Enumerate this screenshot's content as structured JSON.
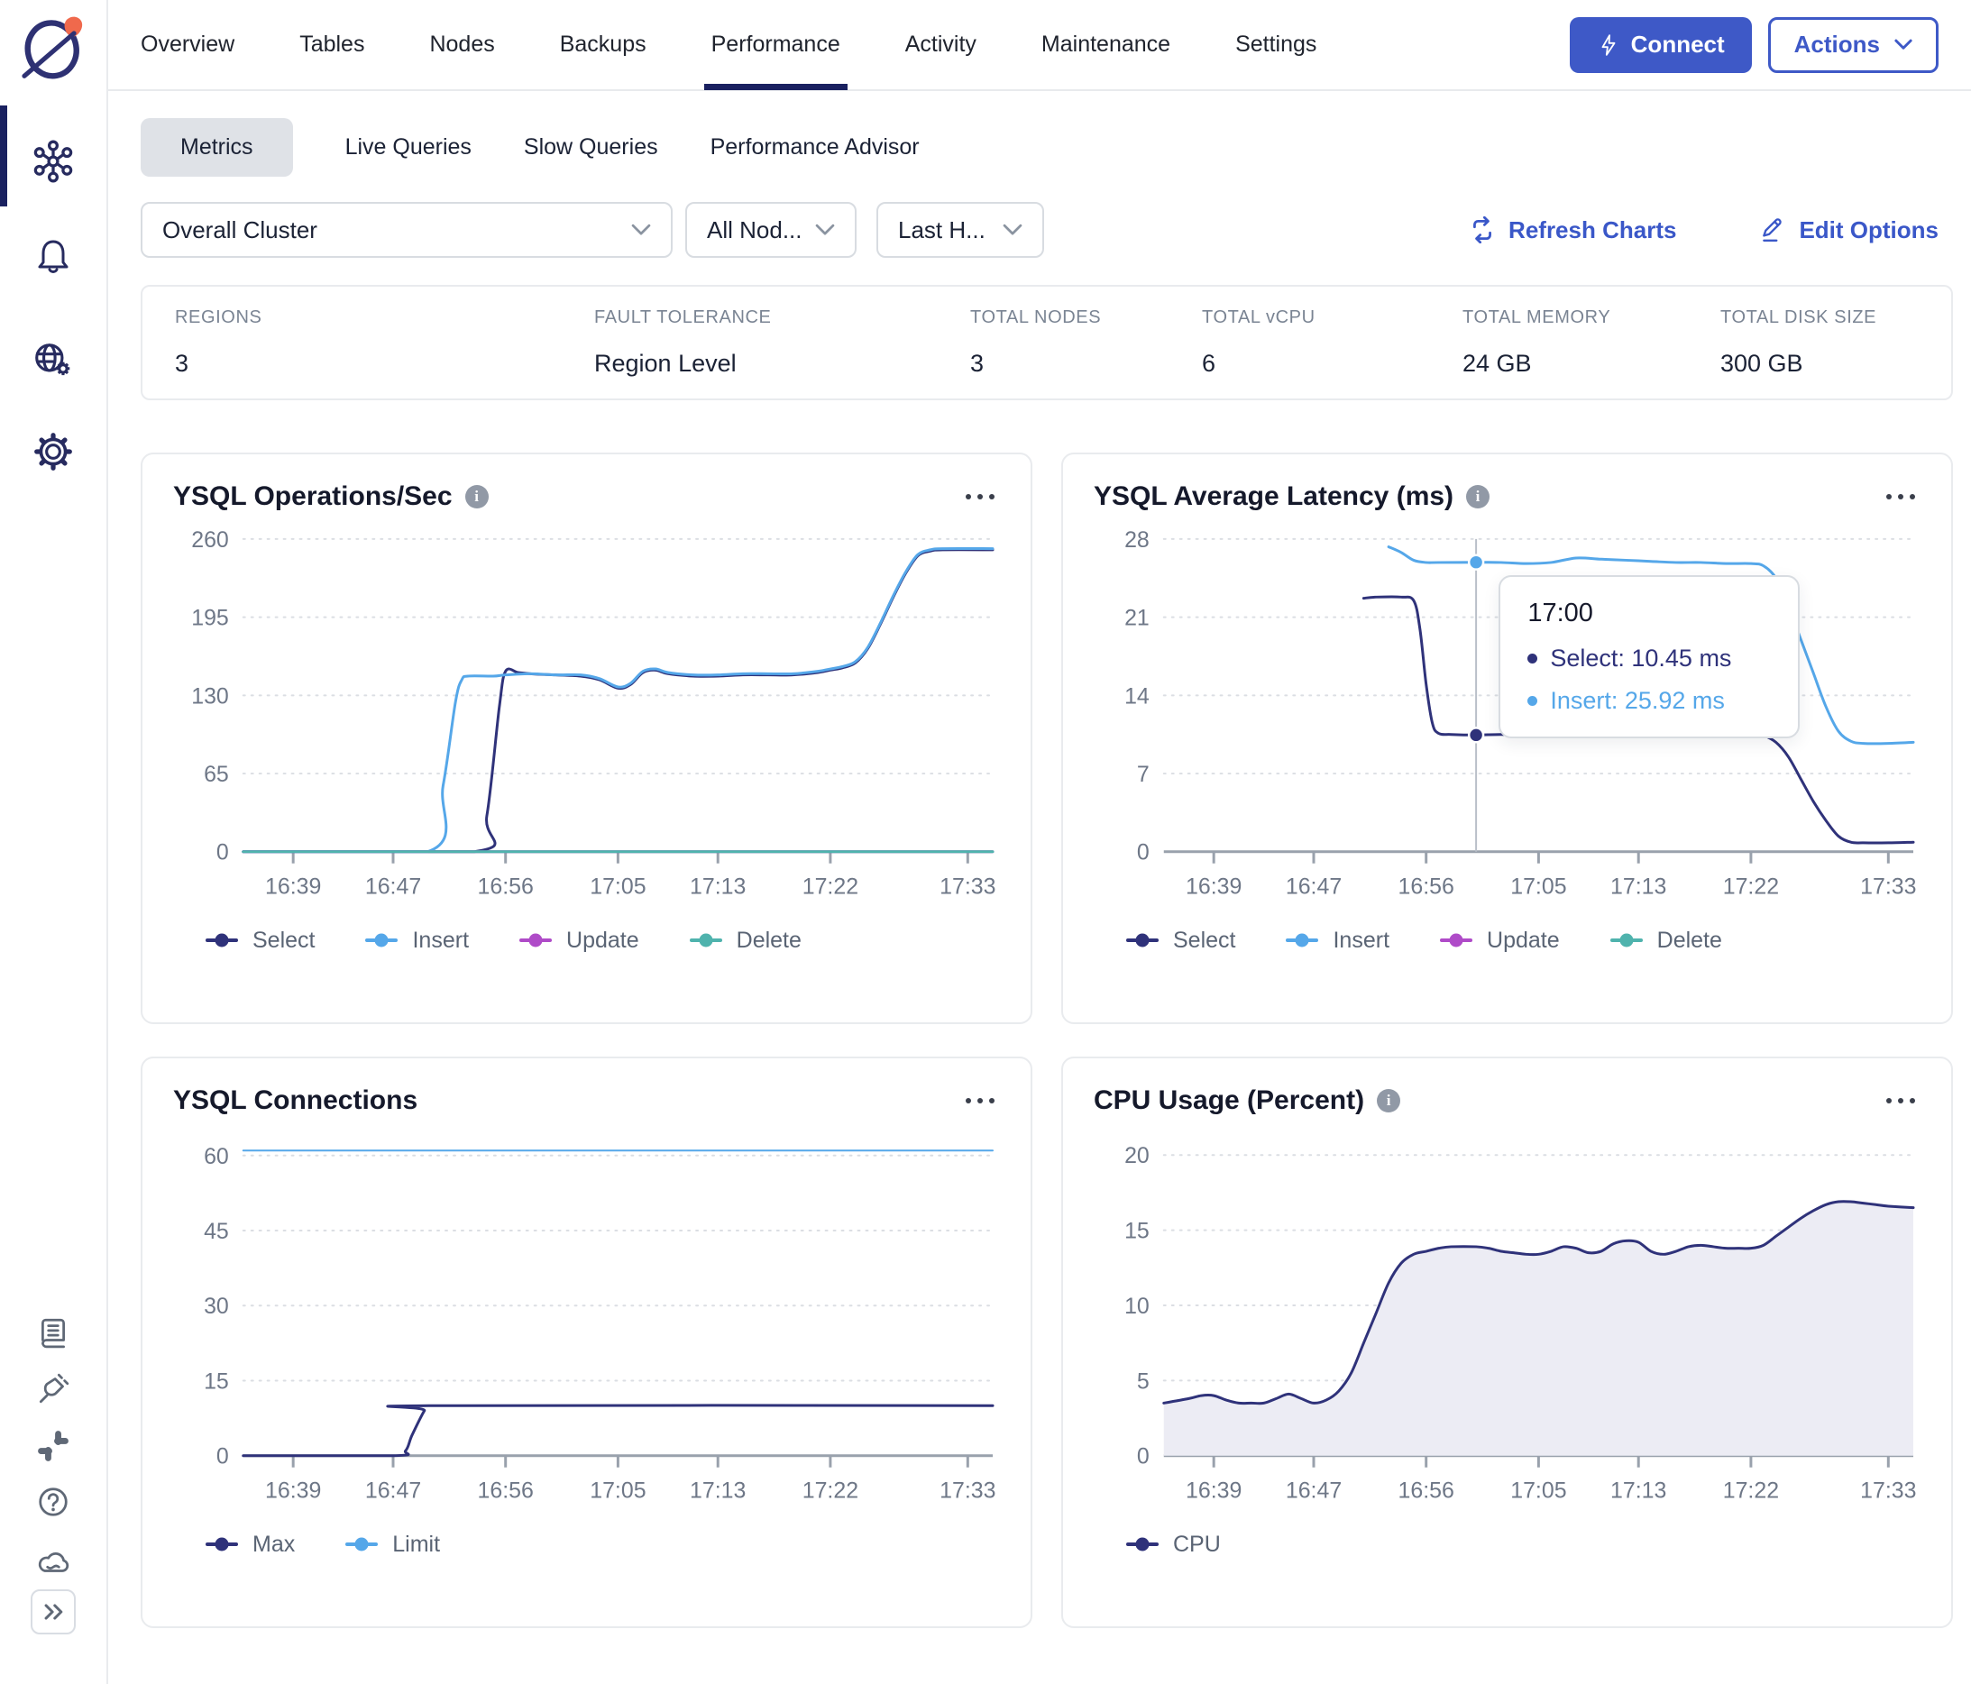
{
  "header": {
    "tabs": [
      "Overview",
      "Tables",
      "Nodes",
      "Backups",
      "Performance",
      "Activity",
      "Maintenance",
      "Settings"
    ],
    "active_tab": "Performance",
    "connect_label": "Connect",
    "actions_label": "Actions"
  },
  "subtabs": {
    "items": [
      "Metrics",
      "Live Queries",
      "Slow Queries",
      "Performance Advisor"
    ],
    "active": "Metrics"
  },
  "filters": {
    "cluster": "Overall Cluster",
    "nodes": "All Nod...",
    "time_range": "Last H..."
  },
  "toolbar": {
    "refresh_label": "Refresh Charts",
    "edit_label": "Edit Options"
  },
  "stats": [
    {
      "label": "REGIONS",
      "value": "3"
    },
    {
      "label": "FAULT TOLERANCE",
      "value": "Region Level"
    },
    {
      "label": "TOTAL NODES",
      "value": "3"
    },
    {
      "label": "TOTAL vCPU",
      "value": "6"
    },
    {
      "label": "TOTAL MEMORY",
      "value": "24 GB"
    },
    {
      "label": "TOTAL DISK SIZE",
      "value": "300 GB"
    }
  ],
  "colors": {
    "accent_blue": "#3E59C7",
    "select": "#2F327A",
    "insert": "#55A7E9",
    "update": "#AF4BC8",
    "delete": "#4FB3AD",
    "active_navy": "#1A2160",
    "cpu_fill": "#ECECF4"
  },
  "chart_data": [
    {
      "type": "line",
      "title": "YSQL Operations/Sec",
      "ylim": [
        0,
        260
      ],
      "yticks": [
        0,
        65,
        130,
        195,
        260
      ],
      "x_range": [
        "16:35",
        "17:35"
      ],
      "xticks": [
        "16:39",
        "16:47",
        "16:56",
        "17:05",
        "17:13",
        "17:22",
        "17:33"
      ],
      "series": [
        {
          "name": "Select",
          "color": "#2F327A",
          "points": [
            [
              "16:35",
              0
            ],
            [
              "16:53:30",
              0
            ],
            [
              "16:54:30",
              30
            ],
            [
              "16:55:30",
              120
            ],
            [
              "16:56",
              150
            ],
            [
              "16:57",
              149
            ],
            [
              "16:58",
              148
            ],
            [
              "17:00",
              147
            ],
            [
              "17:02",
              146
            ],
            [
              "17:03:30",
              143
            ],
            [
              "17:05",
              136
            ],
            [
              "17:06",
              139
            ],
            [
              "17:07",
              149
            ],
            [
              "17:08",
              151
            ],
            [
              "17:09",
              148
            ],
            [
              "17:11",
              146
            ],
            [
              "17:13",
              146
            ],
            [
              "17:15",
              147
            ],
            [
              "17:17",
              147
            ],
            [
              "17:19",
              147
            ],
            [
              "17:21",
              149
            ],
            [
              "17:22",
              151
            ],
            [
              "17:23",
              153
            ],
            [
              "17:24",
              157
            ],
            [
              "17:25",
              169
            ],
            [
              "17:26",
              189
            ],
            [
              "17:27",
              211
            ],
            [
              "17:28",
              231
            ],
            [
              "17:29",
              246
            ],
            [
              "17:30",
              250
            ],
            [
              "17:31",
              251
            ],
            [
              "17:35",
              251
            ]
          ]
        },
        {
          "name": "Insert",
          "color": "#55A7E9",
          "points": [
            [
              "16:35",
              0
            ],
            [
              "16:49:45",
              0
            ],
            [
              "16:51",
              55
            ],
            [
              "16:52",
              125
            ],
            [
              "16:52:30",
              143
            ],
            [
              "16:53",
              146
            ],
            [
              "16:55",
              146
            ],
            [
              "16:56",
              147
            ],
            [
              "16:58",
              148
            ],
            [
              "17:00",
              147
            ],
            [
              "17:02",
              147
            ],
            [
              "17:03:30",
              144
            ],
            [
              "17:05",
              137
            ],
            [
              "17:06",
              140
            ],
            [
              "17:07",
              150
            ],
            [
              "17:08",
              152
            ],
            [
              "17:09",
              149
            ],
            [
              "17:11",
              147
            ],
            [
              "17:13",
              147
            ],
            [
              "17:15",
              148
            ],
            [
              "17:17",
              148
            ],
            [
              "17:19",
              148
            ],
            [
              "17:21",
              150
            ],
            [
              "17:22",
              152
            ],
            [
              "17:23",
              154
            ],
            [
              "17:24",
              158
            ],
            [
              "17:25",
              170
            ],
            [
              "17:26",
              190
            ],
            [
              "17:27",
              212
            ],
            [
              "17:28",
              232
            ],
            [
              "17:29",
              247
            ],
            [
              "17:30",
              251
            ],
            [
              "17:31",
              252
            ],
            [
              "17:35",
              252
            ]
          ]
        },
        {
          "name": "Update",
          "color": "#AF4BC8",
          "points": [
            [
              "16:35",
              0
            ],
            [
              "17:35",
              0
            ]
          ]
        },
        {
          "name": "Delete",
          "color": "#4FB3AD",
          "points": [
            [
              "16:35",
              0
            ],
            [
              "17:35",
              0
            ]
          ]
        }
      ]
    },
    {
      "type": "line",
      "title": "YSQL Average Latency (ms)",
      "ylim": [
        0,
        28
      ],
      "yticks": [
        0,
        7,
        14,
        21,
        28
      ],
      "x_range": [
        "16:35",
        "17:35"
      ],
      "xticks": [
        "16:39",
        "16:47",
        "16:56",
        "17:05",
        "17:13",
        "17:22",
        "17:33"
      ],
      "series": [
        {
          "name": "Select",
          "color": "#2F327A",
          "points": [
            [
              "16:51",
              22.7
            ],
            [
              "16:52",
              22.8
            ],
            [
              "16:54",
              22.8
            ],
            [
              "16:55",
              22.5
            ],
            [
              "16:55:30",
              20
            ],
            [
              "16:56",
              15
            ],
            [
              "16:56:30",
              11.5
            ],
            [
              "16:57",
              10.6
            ],
            [
              "16:58",
              10.5
            ],
            [
              "17:00",
              10.45
            ],
            [
              "17:02",
              10.5
            ],
            [
              "17:04",
              10.4
            ],
            [
              "17:06",
              10.5
            ],
            [
              "17:07",
              10.9
            ],
            [
              "17:08",
              10.8
            ],
            [
              "17:09",
              10.5
            ],
            [
              "17:11",
              10.5
            ],
            [
              "17:13",
              10.4
            ],
            [
              "17:15",
              10.5
            ],
            [
              "17:17",
              10.5
            ],
            [
              "17:19",
              10.5
            ],
            [
              "17:21",
              10.5
            ],
            [
              "17:22",
              10.5
            ],
            [
              "17:23",
              10.4
            ],
            [
              "17:24",
              9.8
            ],
            [
              "17:25",
              8.5
            ],
            [
              "17:26",
              6.5
            ],
            [
              "17:27",
              4.5
            ],
            [
              "17:28",
              2.8
            ],
            [
              "17:29",
              1.4
            ],
            [
              "17:30",
              0.85
            ],
            [
              "17:31",
              0.8
            ],
            [
              "17:33",
              0.8
            ],
            [
              "17:35",
              0.85
            ]
          ]
        },
        {
          "name": "Insert",
          "color": "#55A7E9",
          "points": [
            [
              "16:53",
              27.3
            ],
            [
              "16:54",
              26.8
            ],
            [
              "16:55",
              26.1
            ],
            [
              "16:56",
              25.9
            ],
            [
              "16:57",
              25.9
            ],
            [
              "17:00",
              25.92
            ],
            [
              "17:02",
              25.9
            ],
            [
              "17:04",
              25.8
            ],
            [
              "17:06",
              25.9
            ],
            [
              "17:08",
              26.3
            ],
            [
              "17:10",
              26.2
            ],
            [
              "17:12",
              26.1
            ],
            [
              "17:14",
              26.0
            ],
            [
              "17:16",
              25.9
            ],
            [
              "17:18",
              25.9
            ],
            [
              "17:20",
              25.8
            ],
            [
              "17:22",
              25.8
            ],
            [
              "17:23",
              25.6
            ],
            [
              "17:24",
              24.5
            ],
            [
              "17:25",
              22
            ],
            [
              "17:26",
              19
            ],
            [
              "17:27",
              16
            ],
            [
              "17:28",
              13
            ],
            [
              "17:29",
              10.8
            ],
            [
              "17:30",
              9.9
            ],
            [
              "17:31",
              9.7
            ],
            [
              "17:33",
              9.7
            ],
            [
              "17:35",
              9.8
            ]
          ]
        },
        {
          "name": "Update",
          "color": "#AF4BC8",
          "points": []
        },
        {
          "name": "Delete",
          "color": "#4FB3AD",
          "points": []
        }
      ],
      "crosshair": {
        "time": "17:00",
        "markers": [
          {
            "series": "Select",
            "value": 10.45
          },
          {
            "series": "Insert",
            "value": 25.92
          }
        ]
      },
      "tooltip": {
        "time": "17:00",
        "rows": [
          {
            "series": "Select",
            "text": "Select: 10.45 ms"
          },
          {
            "series": "Insert",
            "text": "Insert: 25.92 ms"
          }
        ]
      }
    },
    {
      "type": "line",
      "title": "YSQL Connections",
      "ylim": [
        0,
        62.5
      ],
      "yticks": [
        0,
        15,
        30,
        45,
        60
      ],
      "x_range": [
        "16:35",
        "17:35"
      ],
      "xticks": [
        "16:39",
        "16:47",
        "16:56",
        "17:05",
        "17:13",
        "17:22",
        "17:33"
      ],
      "series": [
        {
          "name": "Max",
          "color": "#2F327A",
          "points": [
            [
              "16:35",
              0
            ],
            [
              "16:47",
              0
            ],
            [
              "16:48",
              1
            ],
            [
              "16:48:30",
              4
            ],
            [
              "16:49:30",
              9
            ],
            [
              "16:50",
              10
            ],
            [
              "17:35",
              10
            ]
          ]
        },
        {
          "name": "Limit",
          "color": "#55A7E9",
          "width": 2,
          "points": [
            [
              "16:35",
              61
            ],
            [
              "17:35",
              61
            ]
          ]
        }
      ]
    },
    {
      "type": "area",
      "title": "CPU Usage (Percent)",
      "fill": "#ECECF4",
      "ylim": [
        0,
        20.8
      ],
      "yticks": [
        0,
        5,
        10,
        15,
        20
      ],
      "x_range": [
        "16:35",
        "17:35"
      ],
      "xticks": [
        "16:39",
        "16:47",
        "16:56",
        "17:05",
        "17:13",
        "17:22",
        "17:33"
      ],
      "series": [
        {
          "name": "CPU",
          "color": "#2F327A",
          "points": [
            [
              "16:35",
              3.5
            ],
            [
              "16:37",
              3.8
            ],
            [
              "16:38",
              4.0
            ],
            [
              "16:39",
              4.0
            ],
            [
              "16:40",
              3.7
            ],
            [
              "16:41",
              3.5
            ],
            [
              "16:42",
              3.5
            ],
            [
              "16:43",
              3.5
            ],
            [
              "16:44",
              3.8
            ],
            [
              "16:45",
              4.1
            ],
            [
              "16:46",
              3.8
            ],
            [
              "16:47",
              3.5
            ],
            [
              "16:48",
              3.7
            ],
            [
              "16:49",
              4.3
            ],
            [
              "16:50",
              5.5
            ],
            [
              "16:51",
              7.5
            ],
            [
              "16:52",
              9.5
            ],
            [
              "16:53",
              11.5
            ],
            [
              "16:54",
              12.8
            ],
            [
              "16:55",
              13.4
            ],
            [
              "16:56",
              13.6
            ],
            [
              "16:57",
              13.8
            ],
            [
              "16:58",
              13.9
            ],
            [
              "17:00",
              13.9
            ],
            [
              "17:01",
              13.8
            ],
            [
              "17:02",
              13.6
            ],
            [
              "17:03",
              13.5
            ],
            [
              "17:04",
              13.4
            ],
            [
              "17:05",
              13.4
            ],
            [
              "17:06",
              13.6
            ],
            [
              "17:07",
              13.9
            ],
            [
              "17:08",
              13.8
            ],
            [
              "17:09",
              13.5
            ],
            [
              "17:10",
              13.6
            ],
            [
              "17:11",
              14.1
            ],
            [
              "17:12",
              14.3
            ],
            [
              "17:13",
              14.2
            ],
            [
              "17:14",
              13.6
            ],
            [
              "17:15",
              13.4
            ],
            [
              "17:16",
              13.6
            ],
            [
              "17:17",
              13.9
            ],
            [
              "17:18",
              14.0
            ],
            [
              "17:19",
              13.9
            ],
            [
              "17:20",
              13.8
            ],
            [
              "17:21",
              13.8
            ],
            [
              "17:22",
              13.8
            ],
            [
              "17:23",
              14.0
            ],
            [
              "17:24",
              14.6
            ],
            [
              "17:25",
              15.2
            ],
            [
              "17:26",
              15.8
            ],
            [
              "17:27",
              16.3
            ],
            [
              "17:28",
              16.7
            ],
            [
              "17:29",
              16.9
            ],
            [
              "17:30",
              16.9
            ],
            [
              "17:31",
              16.8
            ],
            [
              "17:32",
              16.7
            ],
            [
              "17:33",
              16.6
            ],
            [
              "17:35",
              16.5
            ]
          ]
        }
      ]
    }
  ]
}
